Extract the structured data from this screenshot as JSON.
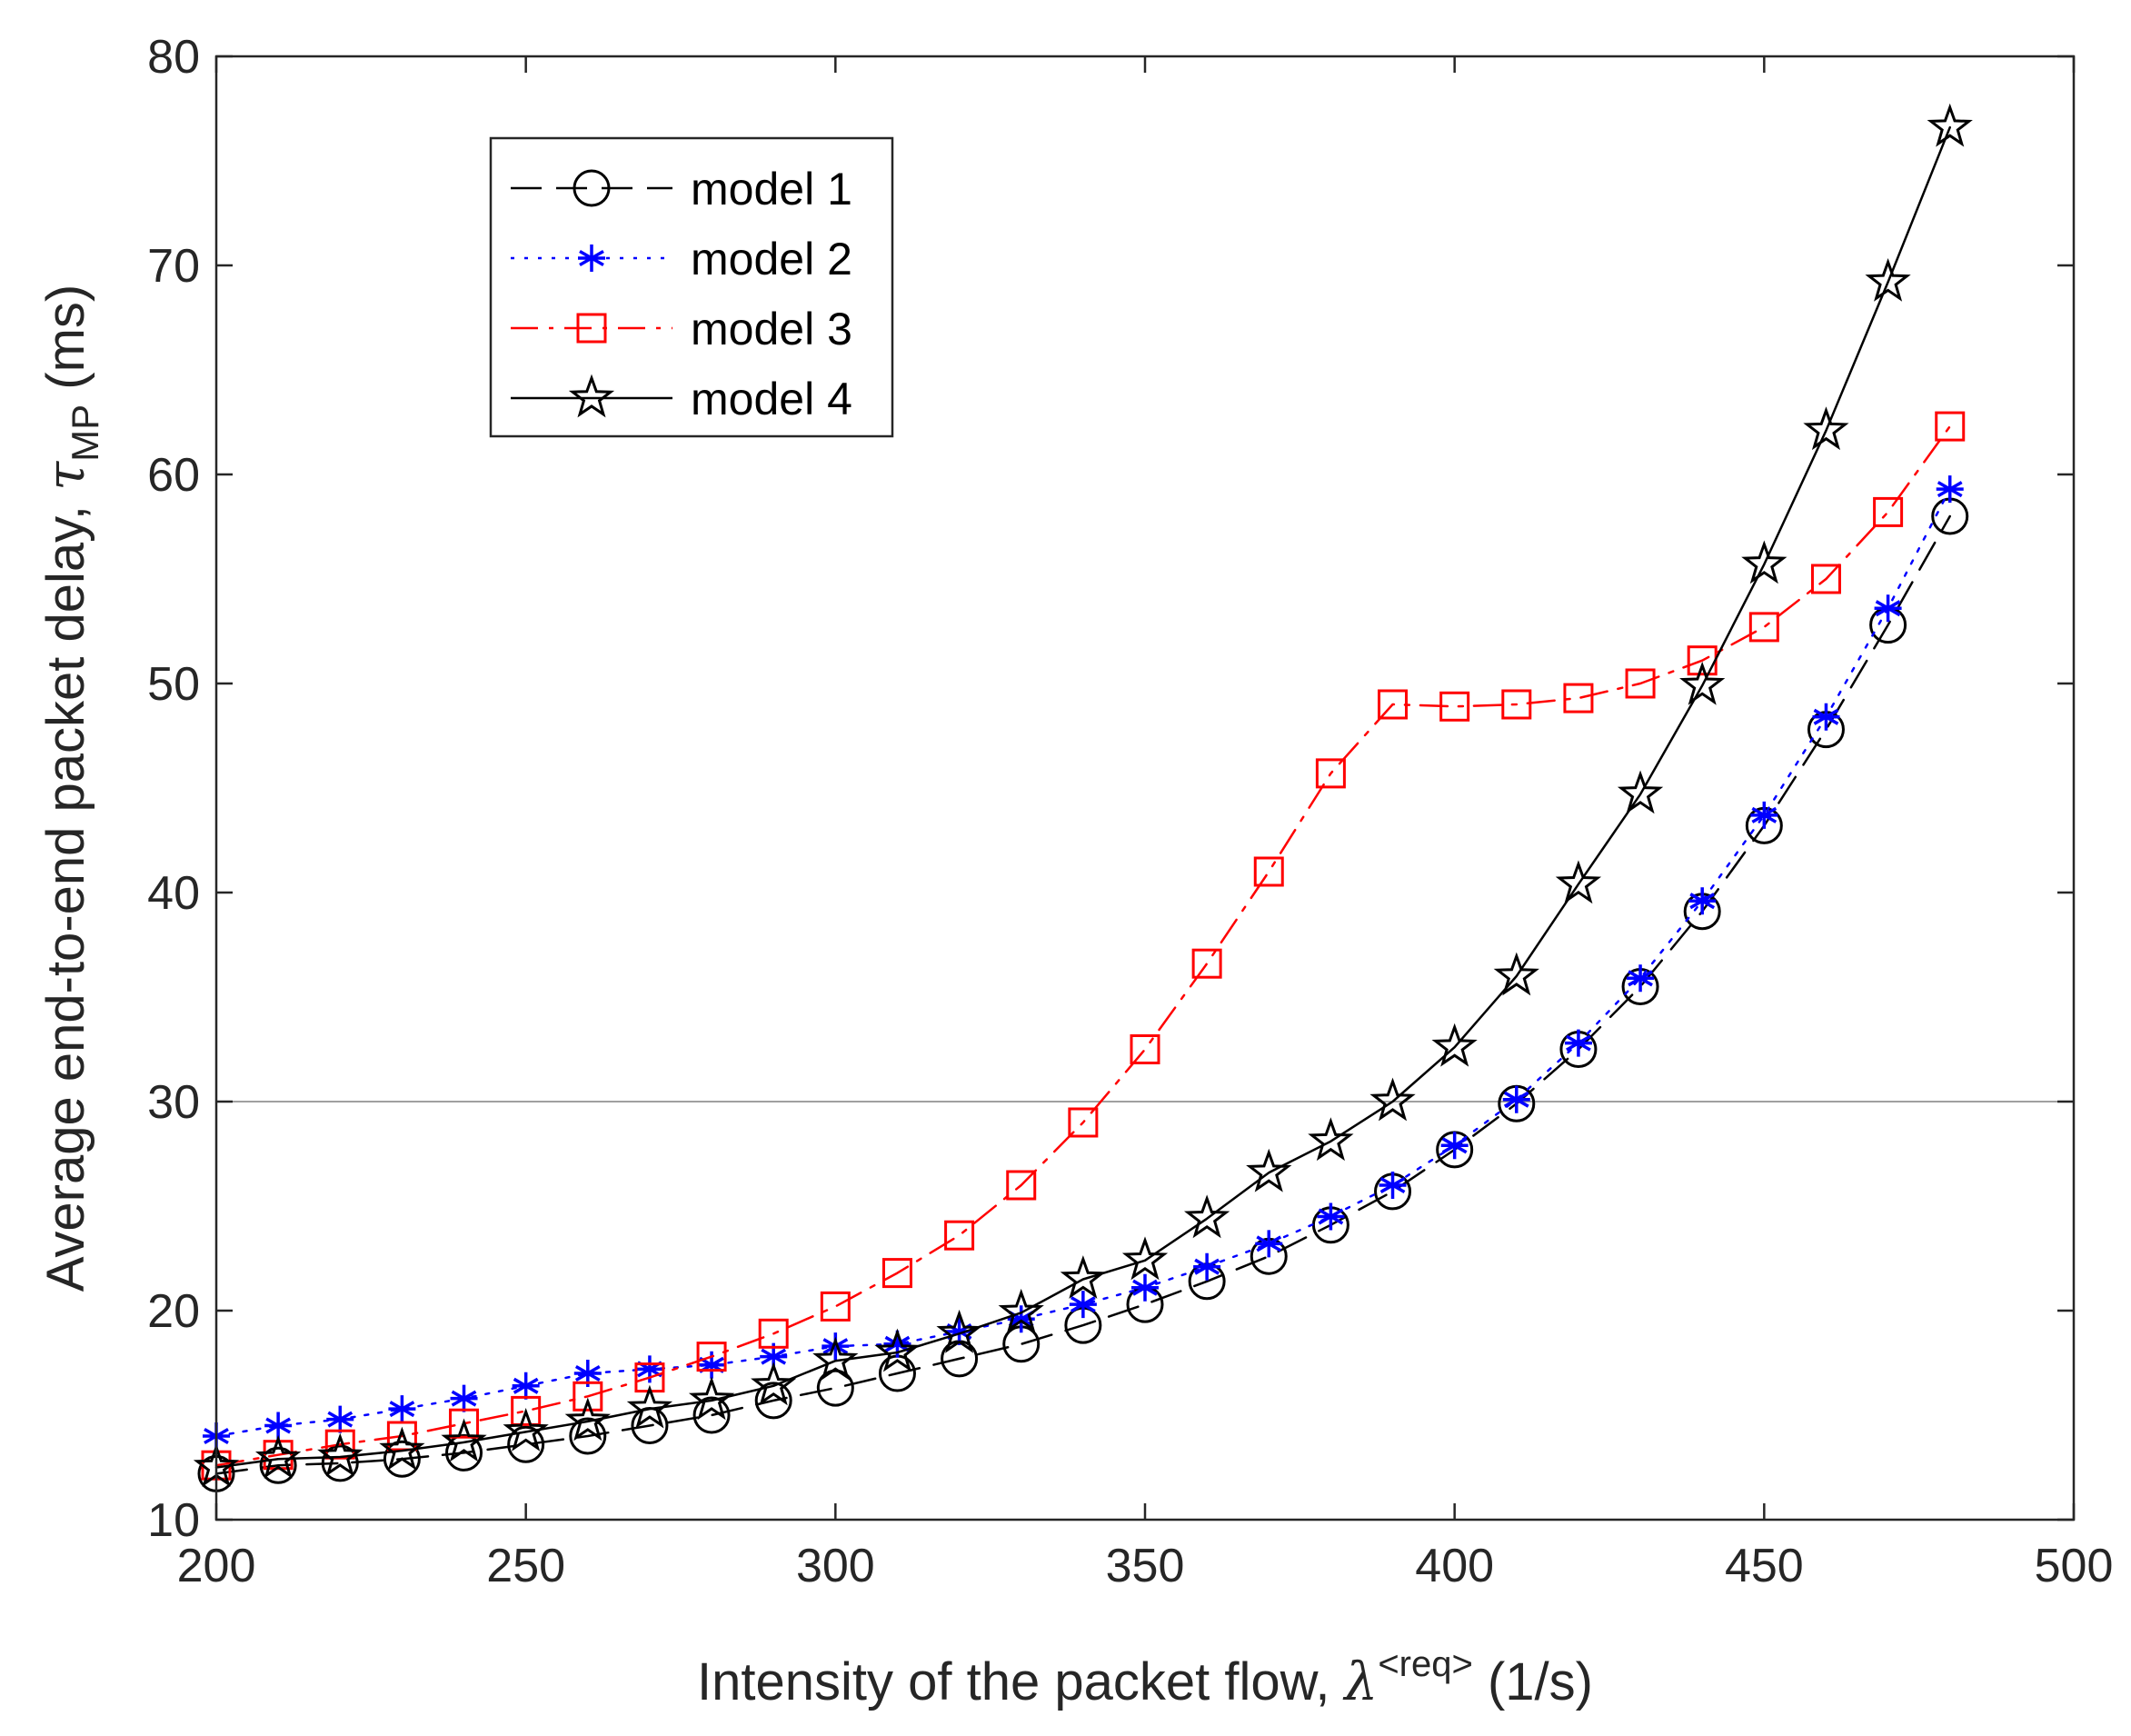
{
  "chart_data": {
    "type": "line",
    "title": "",
    "xlabel": {
      "prefix": "Intensity of the packet flow, ",
      "symbol": "λ",
      "superscript": "<req>",
      "suffix": " (1/s)"
    },
    "ylabel": {
      "prefix": "Average end-to-end packet delay, ",
      "symbol": "τ",
      "subscript": "MP",
      "suffix": " (ms)"
    },
    "xlim": [
      200,
      500
    ],
    "ylim": [
      10,
      80
    ],
    "xticks": [
      200,
      250,
      300,
      350,
      400,
      450,
      500
    ],
    "yticks": [
      10,
      20,
      30,
      40,
      50,
      60,
      70,
      80
    ],
    "reference_line": {
      "y": 30,
      "color": "#808080"
    },
    "legend_position": "top-left",
    "x": [
      200,
      210,
      220,
      230,
      240,
      250,
      260,
      270,
      280,
      290,
      300,
      310,
      320,
      330,
      340,
      350,
      360,
      370,
      380,
      390,
      400,
      410,
      420,
      430,
      440,
      450,
      460,
      470,
      480
    ],
    "series": [
      {
        "name": "model 1",
        "color": "#000000",
        "line": "longdash",
        "marker": "circle",
        "values": [
          12.2,
          12.6,
          12.7,
          12.9,
          13.2,
          13.6,
          14.0,
          14.5,
          15.0,
          15.7,
          16.3,
          17.0,
          17.7,
          18.4,
          19.3,
          20.3,
          21.4,
          22.6,
          24.1,
          25.7,
          27.7,
          29.9,
          32.5,
          35.5,
          39.1,
          43.2,
          47.8,
          52.8,
          58.0
        ]
      },
      {
        "name": "model 2",
        "color": "#0000ff",
        "line": "dotted",
        "marker": "asterisk",
        "values": [
          14.0,
          14.5,
          14.8,
          15.3,
          15.8,
          16.4,
          17.0,
          17.2,
          17.4,
          17.8,
          18.3,
          18.4,
          19.0,
          19.6,
          20.3,
          21.1,
          22.1,
          23.2,
          24.5,
          26.0,
          27.9,
          30.1,
          32.8,
          35.9,
          39.6,
          43.7,
          48.4,
          53.6,
          59.3
        ]
      },
      {
        "name": "model 3",
        "color": "#ff0000",
        "line": "dashdot",
        "marker": "square",
        "values": [
          12.6,
          13.1,
          13.6,
          14.0,
          14.6,
          15.2,
          15.9,
          16.8,
          17.8,
          18.9,
          20.2,
          21.8,
          23.6,
          26.0,
          29.0,
          32.5,
          36.6,
          41.0,
          45.7,
          49.0,
          48.9,
          49.0,
          49.3,
          50.0,
          51.1,
          52.7,
          55.0,
          58.2,
          62.3
        ]
      },
      {
        "name": "model 4",
        "color": "#000000",
        "line": "solid",
        "marker": "star",
        "values": [
          12.5,
          12.9,
          13.0,
          13.3,
          13.7,
          14.2,
          14.7,
          15.3,
          15.7,
          16.4,
          17.6,
          18.0,
          18.9,
          19.9,
          21.5,
          22.4,
          24.4,
          26.6,
          28.1,
          30.0,
          32.6,
          36.0,
          40.4,
          44.7,
          49.9,
          55.7,
          62.1,
          69.2,
          76.6
        ]
      }
    ]
  }
}
